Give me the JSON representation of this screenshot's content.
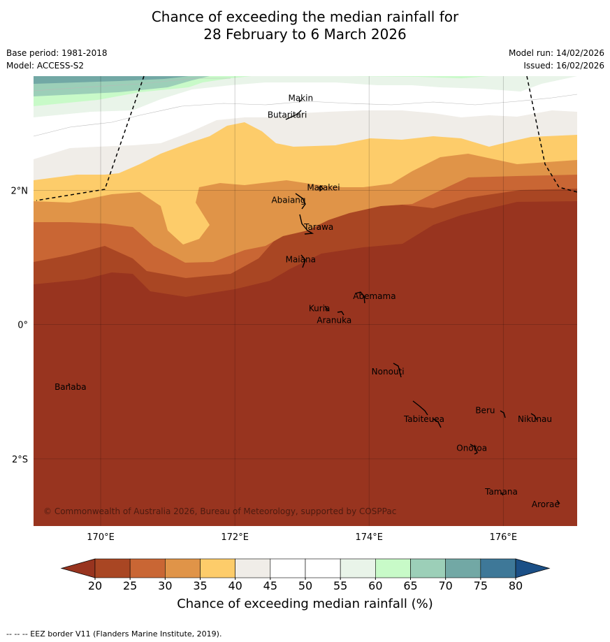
{
  "title": {
    "line1": "Chance of exceeding the median rainfall for",
    "line2": "28 February to 6 March 2026"
  },
  "meta": {
    "base_period": "Base period: 1981-2018",
    "model": "Model: ACCESS-S2",
    "model_run": "Model run: 14/02/2026",
    "issued": "Issued: 16/02/2026"
  },
  "map": {
    "lon_range": [
      169.0,
      177.1
    ],
    "lat_range": [
      -3.0,
      3.7
    ],
    "lat_ticks": [
      {
        "v": 2,
        "label": "2°N"
      },
      {
        "v": 0,
        "label": "0°"
      },
      {
        "v": -2,
        "label": "2°S"
      }
    ],
    "lon_ticks": [
      {
        "v": 170,
        "label": "170°E"
      },
      {
        "v": 172,
        "label": "172°E"
      },
      {
        "v": 174,
        "label": "174°E"
      },
      {
        "v": 176,
        "label": "176°E"
      }
    ],
    "copyright": "© Commonwealth of Australia 2026, Bureau of Meteorology, supported by COSPPac",
    "places": [
      {
        "name": "Makin",
        "lon": 172.98,
        "lat": 3.33
      },
      {
        "name": "Butaritari",
        "lon": 172.78,
        "lat": 3.08
      },
      {
        "name": "Marakei",
        "lon": 173.32,
        "lat": 2.0
      },
      {
        "name": "Abaiang",
        "lon": 172.8,
        "lat": 1.81
      },
      {
        "name": "Tarawa",
        "lon": 173.25,
        "lat": 1.41
      },
      {
        "name": "Maiana",
        "lon": 172.98,
        "lat": 0.93
      },
      {
        "name": "Abemama",
        "lon": 174.08,
        "lat": 0.38
      },
      {
        "name": "Kuria",
        "lon": 173.26,
        "lat": 0.2
      },
      {
        "name": "Aranuka",
        "lon": 173.48,
        "lat": 0.02
      },
      {
        "name": "Banaba",
        "lon": 169.55,
        "lat": -0.97
      },
      {
        "name": "Nonouti",
        "lon": 174.28,
        "lat": -0.74
      },
      {
        "name": "Tabiteuea",
        "lon": 174.82,
        "lat": -1.45
      },
      {
        "name": "Beru",
        "lon": 175.73,
        "lat": -1.32
      },
      {
        "name": "Nikunau",
        "lon": 176.47,
        "lat": -1.45
      },
      {
        "name": "Onotoa",
        "lon": 175.53,
        "lat": -1.88
      },
      {
        "name": "Tamana",
        "lon": 175.97,
        "lat": -2.53
      },
      {
        "name": "Arorae",
        "lon": 176.63,
        "lat": -2.72
      }
    ]
  },
  "chart_data": {
    "type": "heatmap",
    "title": "Chance of exceeding the median rainfall for 28 February to 6 March 2026",
    "variable": "Chance of exceeding median rainfall (%)",
    "levels": [
      20,
      25,
      30,
      35,
      40,
      45,
      50,
      55,
      60,
      65,
      70,
      75,
      80
    ],
    "colors": [
      "#98341f",
      "#a94623",
      "#c96634",
      "#e09448",
      "#fdcc6a",
      "#f0ede8",
      "#ffffff",
      "#ffffff",
      "#e9f4e9",
      "#c8fac8",
      "#9ccfb8",
      "#72a8a5",
      "#3e7898",
      "#1b4f86"
    ],
    "under_color": "#98341f",
    "over_color": "#1b4f86",
    "regions": [
      {
        "range": "< 20",
        "area": "south of about 0.6°N to 1.8°N (most of southern Kiribati including Abemama, Kuria, Aranuka, Nonouti, Tabiteuea, Beru, Nikunau, Onotoa, Tamana, Arorae, Banaba)"
      },
      {
        "range": "20-30",
        "area": "band near Tarawa and Maiana, about 0.5°N to 1.8°N"
      },
      {
        "range": "30-40",
        "area": "band near Abaiang and Marakei, about 1.5°N to 2.5°N"
      },
      {
        "range": "40-55",
        "area": "north of about 2.5°N near Makin and Butaritari"
      },
      {
        "range": "55-75",
        "area": "far north-west corner above 3.3°N"
      }
    ],
    "colorbar_ticks": [
      "20",
      "25",
      "30",
      "35",
      "40",
      "45",
      "50",
      "55",
      "60",
      "65",
      "70",
      "75",
      "80"
    ],
    "colorbar_label": "Chance of exceeding median rainfall (%)"
  },
  "footnote": "-- -- -- EEZ border V11 (Flanders Marine Institute, 2019)."
}
